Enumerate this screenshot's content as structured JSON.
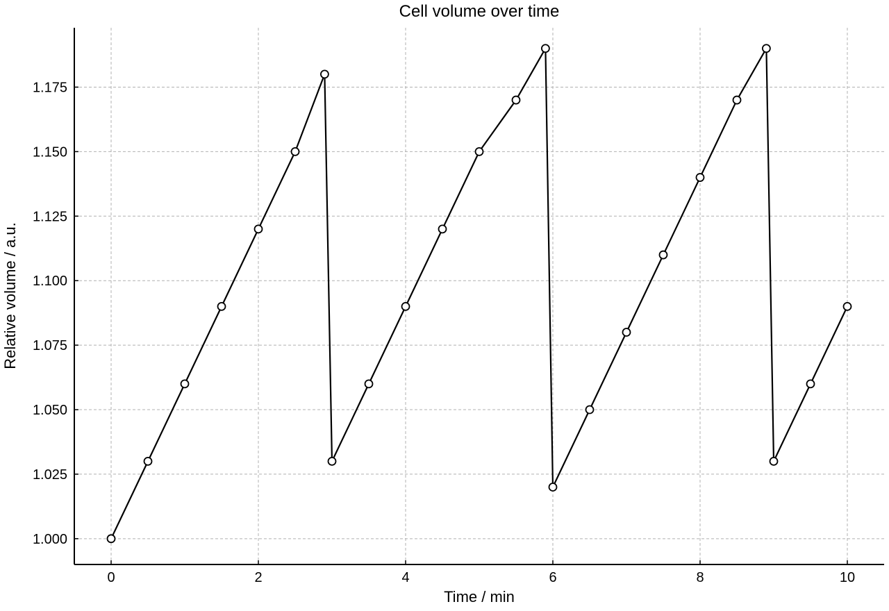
{
  "chart_data": {
    "type": "line",
    "title": "Cell volume over time",
    "xlabel": "Time / min",
    "ylabel": "Relative volume / a.u.",
    "xlim": [
      -0.5,
      10.5
    ],
    "ylim": [
      0.99,
      1.198
    ],
    "xticks": [
      0,
      2,
      4,
      6,
      8,
      10
    ],
    "xtick_labels": [
      "0",
      "2",
      "4",
      "6",
      "8",
      "10"
    ],
    "yticks": [
      1.0,
      1.025,
      1.05,
      1.075,
      1.1,
      1.125,
      1.15,
      1.175
    ],
    "ytick_labels": [
      "1.000",
      "1.025",
      "1.050",
      "1.075",
      "1.100",
      "1.125",
      "1.150",
      "1.175"
    ],
    "grid": true,
    "series": [
      {
        "x": [
          0,
          0.5,
          1,
          1.5,
          2,
          2.5,
          2.9,
          3,
          3.5,
          4,
          4.5,
          5,
          5.5,
          5.9,
          6,
          6.5,
          7,
          7.5,
          8,
          8.5,
          8.9,
          9,
          9.5,
          10
        ],
        "y": [
          1.0,
          1.03,
          1.06,
          1.09,
          1.12,
          1.15,
          1.18,
          1.03,
          1.06,
          1.09,
          1.12,
          1.15,
          1.17,
          1.19,
          1.02,
          1.05,
          1.08,
          1.11,
          1.14,
          1.17,
          1.19,
          1.03,
          1.06,
          1.09
        ],
        "color": "#000000",
        "marker": "circle-open"
      }
    ]
  }
}
